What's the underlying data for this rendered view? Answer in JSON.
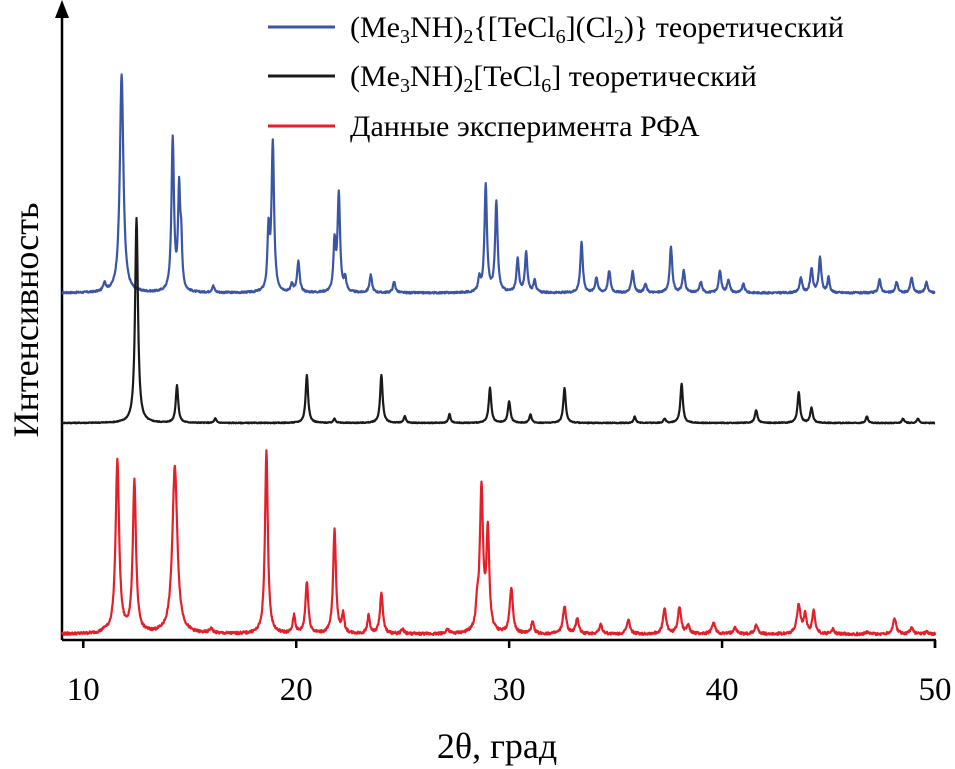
{
  "chart_data": {
    "type": "line",
    "title": "",
    "xlabel": "2θ, град",
    "ylabel": "Интенсивность",
    "xlim": [
      9,
      50
    ],
    "xticks": [
      10,
      20,
      30,
      40,
      50
    ],
    "legend_position": "top-right",
    "series": [
      {
        "name": "(Me3NH)2{[TeCl6](Cl2)} теоретический",
        "legend_parts": [
          {
            "t": "(Me"
          },
          {
            "t": "3",
            "sub": true
          },
          {
            "t": "NH)"
          },
          {
            "t": "2",
            "sub": true
          },
          {
            "t": "{[TeCl"
          },
          {
            "t": "6",
            "sub": true
          },
          {
            "t": "](Cl"
          },
          {
            "t": "2",
            "sub": true
          },
          {
            "t": ")} теоретический"
          }
        ],
        "color": "#3a55a4",
        "baseline": 0,
        "noise": 0.004,
        "peaks": [
          [
            11.0,
            0.04,
            0.07
          ],
          [
            11.8,
            1.0,
            0.1
          ],
          [
            14.2,
            0.7,
            0.07
          ],
          [
            14.5,
            0.45,
            0.06
          ],
          [
            14.6,
            0.2,
            0.05
          ],
          [
            16.1,
            0.03,
            0.07
          ],
          [
            18.7,
            0.27,
            0.06
          ],
          [
            18.9,
            0.68,
            0.07
          ],
          [
            19.8,
            0.04,
            0.06
          ],
          [
            20.1,
            0.14,
            0.07
          ],
          [
            21.8,
            0.22,
            0.06
          ],
          [
            22.0,
            0.45,
            0.07
          ],
          [
            22.3,
            0.06,
            0.06
          ],
          [
            23.5,
            0.08,
            0.07
          ],
          [
            24.6,
            0.05,
            0.07
          ],
          [
            28.6,
            0.06,
            0.06
          ],
          [
            28.9,
            0.49,
            0.07
          ],
          [
            29.4,
            0.41,
            0.07
          ],
          [
            30.4,
            0.15,
            0.07
          ],
          [
            30.8,
            0.18,
            0.07
          ],
          [
            31.2,
            0.06,
            0.06
          ],
          [
            33.4,
            0.23,
            0.07
          ],
          [
            34.1,
            0.07,
            0.07
          ],
          [
            34.7,
            0.1,
            0.07
          ],
          [
            35.8,
            0.1,
            0.07
          ],
          [
            36.4,
            0.04,
            0.07
          ],
          [
            37.6,
            0.21,
            0.07
          ],
          [
            38.2,
            0.1,
            0.07
          ],
          [
            39.0,
            0.05,
            0.07
          ],
          [
            39.9,
            0.1,
            0.07
          ],
          [
            40.3,
            0.06,
            0.07
          ],
          [
            41.0,
            0.04,
            0.07
          ],
          [
            43.7,
            0.07,
            0.07
          ],
          [
            44.2,
            0.11,
            0.07
          ],
          [
            44.6,
            0.16,
            0.07
          ],
          [
            45.0,
            0.07,
            0.06
          ],
          [
            47.4,
            0.06,
            0.07
          ],
          [
            48.2,
            0.05,
            0.07
          ],
          [
            48.9,
            0.07,
            0.07
          ],
          [
            49.6,
            0.05,
            0.07
          ]
        ]
      },
      {
        "name": "(Me3NH)2[TeCl6] теоретический",
        "legend_parts": [
          {
            "t": "(Me"
          },
          {
            "t": "3",
            "sub": true
          },
          {
            "t": "NH)"
          },
          {
            "t": "2",
            "sub": true
          },
          {
            "t": "[TeCl"
          },
          {
            "t": "6",
            "sub": true
          },
          {
            "t": "] теоретический"
          }
        ],
        "color": "#1a1a1a",
        "baseline": 0,
        "noise": 0.002,
        "peaks": [
          [
            12.5,
            0.94,
            0.08
          ],
          [
            14.4,
            0.17,
            0.07
          ],
          [
            16.2,
            0.02,
            0.06
          ],
          [
            20.5,
            0.22,
            0.07
          ],
          [
            21.8,
            0.02,
            0.06
          ],
          [
            24.0,
            0.22,
            0.07
          ],
          [
            25.1,
            0.03,
            0.06
          ],
          [
            27.2,
            0.04,
            0.06
          ],
          [
            29.1,
            0.16,
            0.07
          ],
          [
            30.0,
            0.1,
            0.07
          ],
          [
            31.0,
            0.04,
            0.06
          ],
          [
            32.6,
            0.16,
            0.07
          ],
          [
            35.9,
            0.03,
            0.06
          ],
          [
            37.3,
            0.02,
            0.06
          ],
          [
            38.1,
            0.18,
            0.07
          ],
          [
            41.6,
            0.06,
            0.07
          ],
          [
            43.6,
            0.14,
            0.07
          ],
          [
            44.2,
            0.07,
            0.07
          ],
          [
            46.8,
            0.03,
            0.06
          ],
          [
            48.5,
            0.02,
            0.06
          ],
          [
            49.2,
            0.02,
            0.06
          ]
        ]
      },
      {
        "name": "Данные эксперимента РФА",
        "legend_parts": [
          {
            "t": "Данные эксперимента РФА"
          }
        ],
        "color": "#e3202a",
        "baseline": 0.008,
        "noise": 0.006,
        "peaks": [
          [
            11.0,
            0.01,
            0.08
          ],
          [
            11.6,
            0.76,
            0.1
          ],
          [
            12.4,
            0.67,
            0.09
          ],
          [
            14.3,
            0.74,
            0.14
          ],
          [
            16.0,
            0.02,
            0.1
          ],
          [
            18.6,
            0.81,
            0.08
          ],
          [
            19.9,
            0.08,
            0.07
          ],
          [
            20.5,
            0.23,
            0.08
          ],
          [
            21.8,
            0.46,
            0.08
          ],
          [
            22.2,
            0.08,
            0.07
          ],
          [
            23.4,
            0.08,
            0.07
          ],
          [
            24.0,
            0.18,
            0.08
          ],
          [
            25.0,
            0.02,
            0.08
          ],
          [
            27.1,
            0.02,
            0.08
          ],
          [
            28.5,
            0.1,
            0.07
          ],
          [
            28.7,
            0.63,
            0.09
          ],
          [
            29.0,
            0.44,
            0.08
          ],
          [
            30.1,
            0.2,
            0.09
          ],
          [
            31.1,
            0.05,
            0.08
          ],
          [
            32.6,
            0.12,
            0.09
          ],
          [
            33.2,
            0.07,
            0.08
          ],
          [
            34.3,
            0.04,
            0.09
          ],
          [
            35.6,
            0.06,
            0.09
          ],
          [
            37.3,
            0.11,
            0.09
          ],
          [
            38.0,
            0.12,
            0.09
          ],
          [
            38.4,
            0.04,
            0.08
          ],
          [
            39.6,
            0.05,
            0.09
          ],
          [
            40.6,
            0.03,
            0.09
          ],
          [
            41.6,
            0.04,
            0.09
          ],
          [
            43.6,
            0.13,
            0.1
          ],
          [
            43.9,
            0.08,
            0.08
          ],
          [
            44.3,
            0.1,
            0.08
          ],
          [
            45.2,
            0.02,
            0.08
          ],
          [
            46.8,
            0.01,
            0.08
          ],
          [
            48.1,
            0.07,
            0.09
          ],
          [
            48.9,
            0.03,
            0.08
          ],
          [
            49.6,
            0.01,
            0.08
          ]
        ]
      }
    ]
  }
}
